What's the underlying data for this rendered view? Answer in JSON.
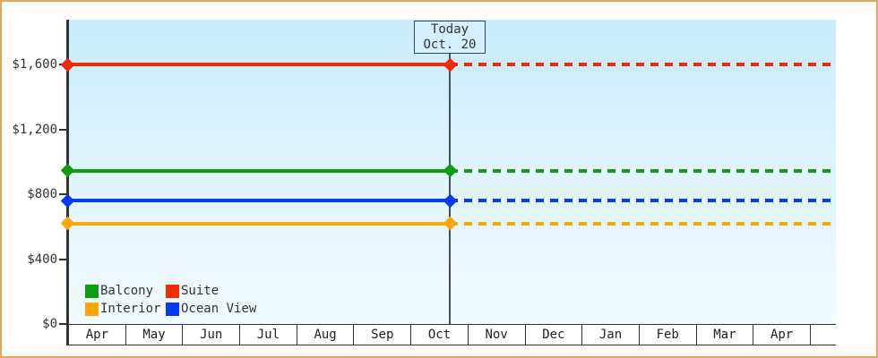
{
  "y_axis": {
    "labels": [
      "$1,600",
      "$1,200",
      "$800",
      "$400",
      "$0"
    ]
  },
  "today_marker": {
    "line1": "Today",
    "line2": "Oct. 20"
  },
  "legend": {
    "items": [
      {
        "label": "Balcony",
        "color": "#0d9e0d"
      },
      {
        "label": "Suite",
        "color": "#f42a00"
      },
      {
        "label": "Interior",
        "color": "#ffa602"
      },
      {
        "label": "Ocean View",
        "color": "#0539f5"
      }
    ]
  },
  "chart_data": {
    "type": "line",
    "categories": [
      "Apr",
      "May",
      "Jun",
      "Jul",
      "Aug",
      "Sep",
      "Oct",
      "Nov",
      "Dec",
      "Jan",
      "Feb",
      "Mar",
      "Apr"
    ],
    "series": [
      {
        "name": "Suite",
        "value": 1600,
        "color": "#f42a00"
      },
      {
        "name": "Balcony",
        "value": 945,
        "color": "#0d9e0d"
      },
      {
        "name": "Ocean View",
        "value": 760,
        "color": "#0539f5"
      },
      {
        "name": "Interior",
        "value": 620,
        "color": "#ffa602"
      }
    ],
    "ylim": [
      0,
      1600
    ],
    "y_ticks": [
      0,
      400,
      800,
      1200,
      1600
    ],
    "today": {
      "label": "Today",
      "date": "Oct. 20",
      "position_month": "Oct"
    },
    "line_style": {
      "before_today": "solid",
      "after_today": "dashed",
      "marker": "diamond"
    },
    "legend_position": "bottom-left",
    "grid": false
  }
}
